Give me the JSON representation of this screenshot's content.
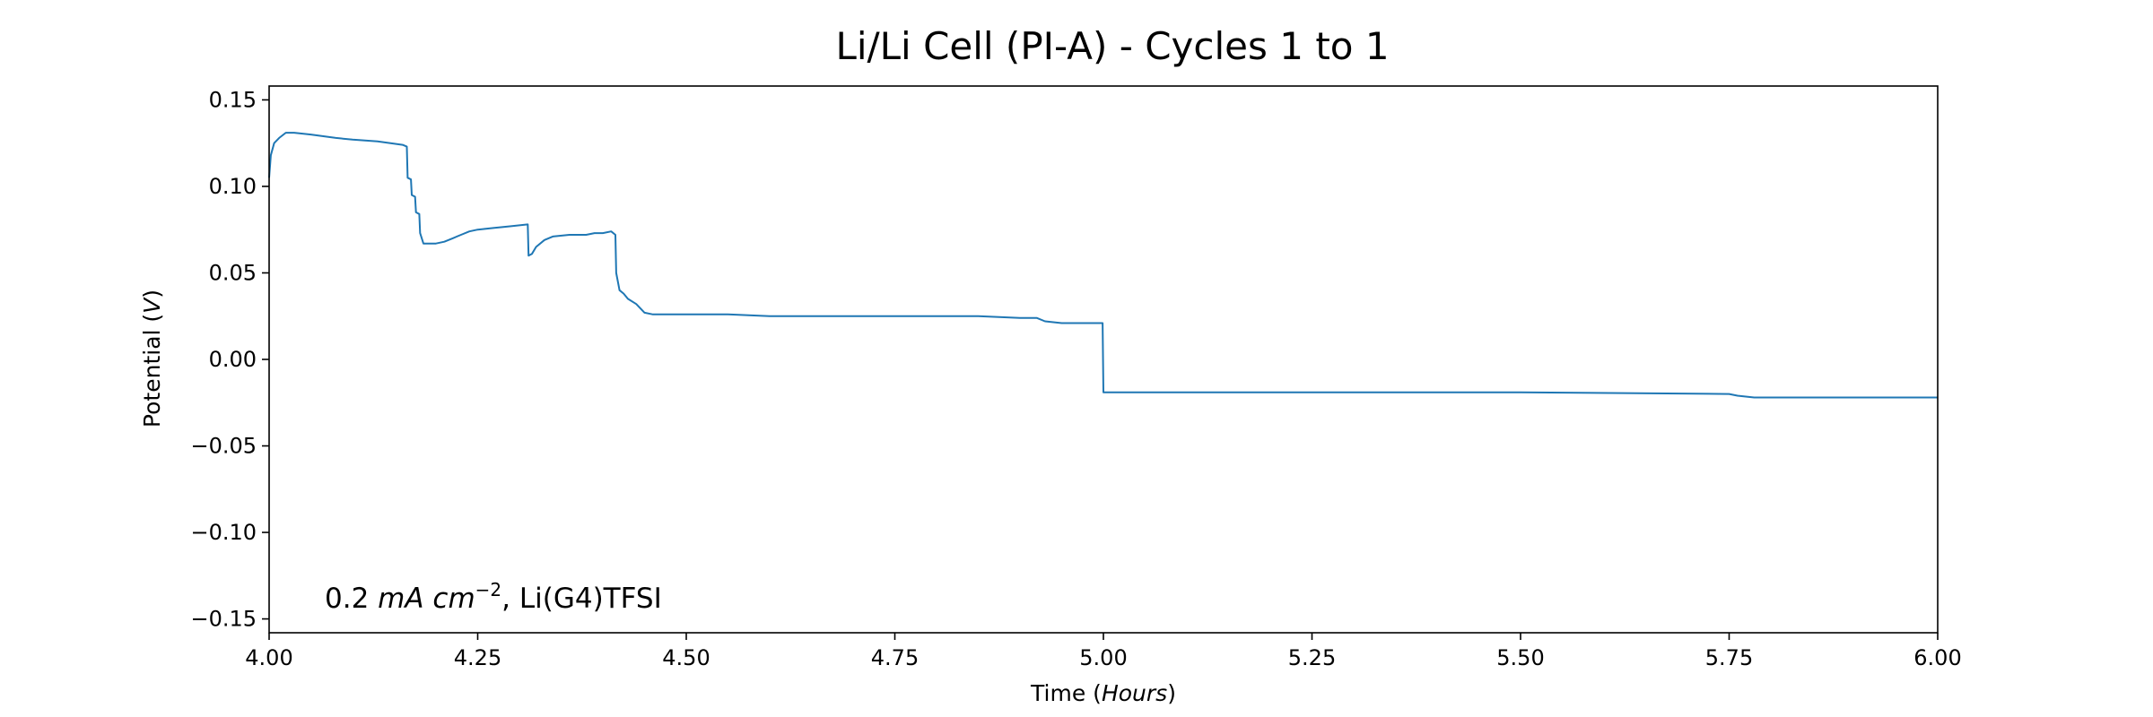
{
  "chart_data": {
    "type": "line",
    "title": "Li/Li Cell (PI-A) - Cycles 1 to 1",
    "xlabel": {
      "text": "Time (",
      "italic": "Hours",
      "suffix": ")"
    },
    "ylabel": {
      "text": "Potential (",
      "italic": "V",
      "suffix": ")"
    },
    "annotation": {
      "value": "0.2 ",
      "unit_italic": "mA cm",
      "sup": "−2",
      "rest": ", Li(G4)TFSI"
    },
    "xlim": [
      4.0,
      6.0
    ],
    "ylim": [
      -0.158,
      0.158
    ],
    "x_ticks": [
      {
        "value": 4.0,
        "label": "4.00"
      },
      {
        "value": 4.25,
        "label": "4.25"
      },
      {
        "value": 4.5,
        "label": "4.50"
      },
      {
        "value": 4.75,
        "label": "4.75"
      },
      {
        "value": 5.0,
        "label": "5.00"
      },
      {
        "value": 5.25,
        "label": "5.25"
      },
      {
        "value": 5.5,
        "label": "5.50"
      },
      {
        "value": 5.75,
        "label": "5.75"
      },
      {
        "value": 6.0,
        "label": "6.00"
      }
    ],
    "y_ticks": [
      {
        "value": 0.15,
        "label": "0.15"
      },
      {
        "value": 0.1,
        "label": "0.10"
      },
      {
        "value": 0.05,
        "label": "0.05"
      },
      {
        "value": 0.0,
        "label": "0.00"
      },
      {
        "value": -0.05,
        "label": "−0.05"
      },
      {
        "value": -0.1,
        "label": "−0.10"
      },
      {
        "value": -0.15,
        "label": "−0.15"
      }
    ],
    "grid": false,
    "line_color": "#1f77b4",
    "series": [
      {
        "x": [
          4.0,
          4.002,
          4.006,
          4.012,
          4.02,
          4.03,
          4.05,
          4.08,
          4.1,
          4.13,
          4.16,
          4.165,
          4.166,
          4.17,
          4.171,
          4.175,
          4.176,
          4.18,
          4.181,
          4.185,
          4.19,
          4.2,
          4.21,
          4.22,
          4.23,
          4.24,
          4.25,
          4.27,
          4.29,
          4.31,
          4.311,
          4.315,
          4.32,
          4.33,
          4.34,
          4.36,
          4.38,
          4.39,
          4.4,
          4.41,
          4.415,
          4.416,
          4.42,
          4.425,
          4.43,
          4.44,
          4.45,
          4.46,
          4.5,
          4.55,
          4.6,
          4.65,
          4.7,
          4.75,
          4.8,
          4.85,
          4.9,
          4.92,
          4.93,
          4.95,
          4.97,
          4.999,
          5.0,
          5.05,
          5.25,
          5.5,
          5.75,
          5.76,
          5.78,
          6.0
        ],
        "y": [
          0.105,
          0.118,
          0.125,
          0.128,
          0.131,
          0.131,
          0.13,
          0.128,
          0.127,
          0.126,
          0.124,
          0.123,
          0.105,
          0.104,
          0.095,
          0.094,
          0.085,
          0.084,
          0.073,
          0.067,
          0.067,
          0.067,
          0.068,
          0.07,
          0.072,
          0.074,
          0.075,
          0.076,
          0.077,
          0.078,
          0.06,
          0.061,
          0.065,
          0.069,
          0.071,
          0.072,
          0.072,
          0.073,
          0.073,
          0.074,
          0.072,
          0.05,
          0.04,
          0.038,
          0.035,
          0.032,
          0.027,
          0.026,
          0.026,
          0.026,
          0.025,
          0.025,
          0.025,
          0.025,
          0.025,
          0.025,
          0.024,
          0.024,
          0.022,
          0.021,
          0.021,
          0.021,
          -0.019,
          -0.019,
          -0.019,
          -0.019,
          -0.02,
          -0.021,
          -0.022,
          -0.022
        ]
      }
    ]
  }
}
